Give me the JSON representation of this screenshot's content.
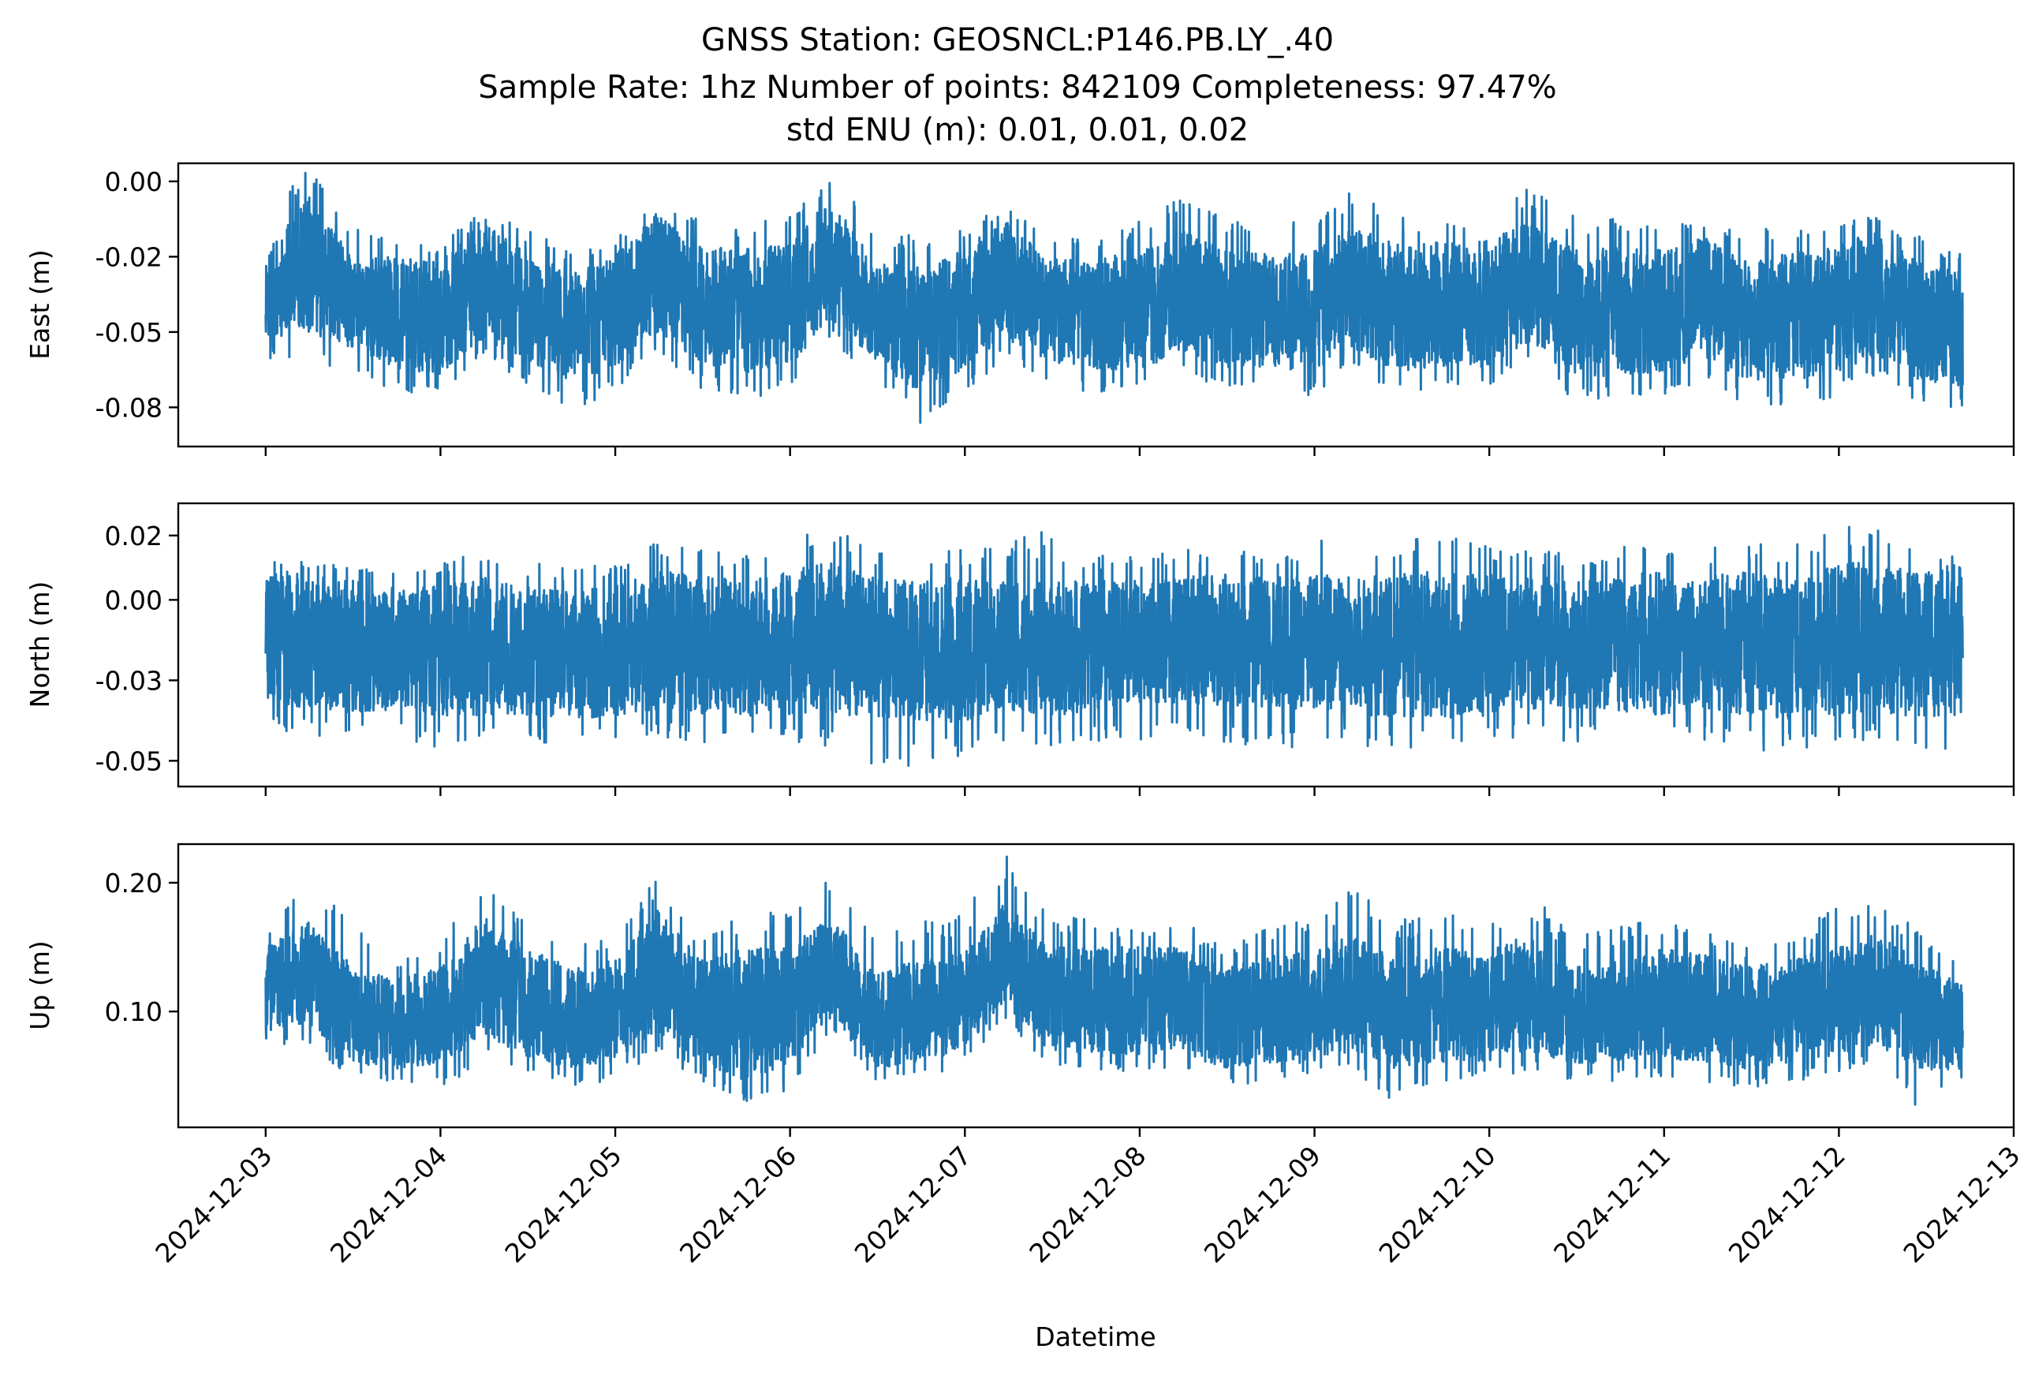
{
  "figure": {
    "title_lines": [
      "GNSS Station: GEOSNCL:P146.PB.LY_.40",
      "Sample Rate: 1hz   Number of points: 842109    Completeness:  97.47%",
      "std ENU (m):  0.01, 0.01, 0.02"
    ],
    "xlabel": "Datetime",
    "line_color": "#1f77b4"
  },
  "chart_data": [
    {
      "type": "line",
      "name": "east-panel",
      "title": "",
      "ylabel": "East (m)",
      "xlabel": "",
      "x_range": [
        "2024-12-02T12:00",
        "2024-12-13T00:00"
      ],
      "x_data_range": [
        "2024-12-03T00:00",
        "2024-12-12T17:00"
      ],
      "ylim": [
        -0.088,
        0.006
      ],
      "yticks": [
        0.0,
        -0.025,
        -0.05,
        -0.075
      ],
      "ytick_labels": [
        "0.00",
        "-0.02",
        "-0.05",
        "-0.08"
      ],
      "grid": false,
      "series": [
        {
          "values_approx_envelope": {
            "time": [
              "2024-12-03T00:00",
              "2024-12-03T06:00",
              "2024-12-03T12:00",
              "2024-12-03T18:00",
              "2024-12-04T00:00",
              "2024-12-04T06:00",
              "2024-12-04T12:00",
              "2024-12-04T18:00",
              "2024-12-05T00:00",
              "2024-12-05T06:00",
              "2024-12-05T12:00",
              "2024-12-05T18:00",
              "2024-12-06T00:00",
              "2024-12-06T06:00",
              "2024-12-06T12:00",
              "2024-12-06T18:00",
              "2024-12-07T00:00",
              "2024-12-07T06:00",
              "2024-12-07T12:00",
              "2024-12-07T18:00",
              "2024-12-08T00:00",
              "2024-12-08T06:00",
              "2024-12-08T12:00",
              "2024-12-08T18:00",
              "2024-12-09T00:00",
              "2024-12-09T06:00",
              "2024-12-09T12:00",
              "2024-12-09T18:00",
              "2024-12-10T00:00",
              "2024-12-10T06:00",
              "2024-12-10T12:00",
              "2024-12-10T18:00",
              "2024-12-11T00:00",
              "2024-12-11T06:00",
              "2024-12-11T12:00",
              "2024-12-11T18:00",
              "2024-12-12T00:00",
              "2024-12-12T06:00",
              "2024-12-12T12:00",
              "2024-12-12T17:00"
            ],
            "upper": [
              -0.024,
              -0.005,
              -0.025,
              -0.025,
              -0.027,
              -0.012,
              -0.024,
              -0.03,
              -0.025,
              -0.01,
              -0.022,
              -0.022,
              -0.021,
              -0.005,
              -0.027,
              -0.028,
              -0.022,
              -0.013,
              -0.026,
              -0.025,
              -0.024,
              -0.016,
              -0.022,
              -0.024,
              -0.024,
              -0.015,
              -0.021,
              -0.02,
              -0.02,
              -0.013,
              -0.022,
              -0.022,
              -0.022,
              -0.018,
              -0.026,
              -0.024,
              -0.021,
              -0.017,
              -0.027,
              -0.03
            ],
            "lower": [
              -0.052,
              -0.05,
              -0.057,
              -0.062,
              -0.064,
              -0.052,
              -0.06,
              -0.066,
              -0.062,
              -0.05,
              -0.06,
              -0.064,
              -0.062,
              -0.046,
              -0.06,
              -0.07,
              -0.064,
              -0.052,
              -0.06,
              -0.062,
              -0.064,
              -0.056,
              -0.062,
              -0.062,
              -0.063,
              -0.056,
              -0.063,
              -0.062,
              -0.062,
              -0.054,
              -0.064,
              -0.065,
              -0.064,
              -0.058,
              -0.066,
              -0.066,
              -0.064,
              -0.058,
              -0.066,
              -0.068
            ],
            "spike_max": [
              -0.012,
              0.005,
              -0.015,
              -0.018,
              -0.02,
              -0.01,
              -0.016,
              -0.022,
              -0.02,
              -0.005,
              -0.013,
              -0.016,
              -0.01,
              0.004,
              -0.016,
              -0.018,
              -0.016,
              -0.007,
              -0.02,
              -0.018,
              -0.014,
              -0.005,
              -0.012,
              -0.014,
              -0.013,
              -0.002,
              -0.012,
              -0.011,
              -0.013,
              -0.002,
              -0.011,
              -0.012,
              -0.013,
              -0.012,
              -0.016,
              -0.015,
              -0.014,
              -0.011,
              -0.018,
              -0.023
            ],
            "spike_min": [
              -0.06,
              -0.057,
              -0.066,
              -0.069,
              -0.072,
              -0.057,
              -0.068,
              -0.077,
              -0.07,
              -0.056,
              -0.069,
              -0.072,
              -0.07,
              -0.052,
              -0.068,
              -0.081,
              -0.072,
              -0.058,
              -0.068,
              -0.07,
              -0.072,
              -0.063,
              -0.07,
              -0.07,
              -0.071,
              -0.062,
              -0.071,
              -0.07,
              -0.07,
              -0.061,
              -0.072,
              -0.073,
              -0.072,
              -0.066,
              -0.074,
              -0.074,
              -0.072,
              -0.065,
              -0.074,
              -0.076
            ]
          }
        }
      ]
    },
    {
      "type": "line",
      "name": "north-panel",
      "title": "",
      "ylabel": "North (m)",
      "xlabel": "",
      "x_range": [
        "2024-12-02T12:00",
        "2024-12-13T00:00"
      ],
      "x_data_range": [
        "2024-12-03T00:00",
        "2024-12-12T17:00"
      ],
      "ylim": [
        -0.058,
        0.03
      ],
      "yticks": [
        0.02,
        0.0,
        -0.025,
        -0.05
      ],
      "ytick_labels": [
        "0.02",
        "0.00",
        "-0.03",
        "-0.05"
      ],
      "grid": false,
      "series": [
        {
          "values_approx_envelope": {
            "time": [
              "2024-12-03T00:00",
              "2024-12-03T06:00",
              "2024-12-03T12:00",
              "2024-12-03T18:00",
              "2024-12-04T00:00",
              "2024-12-04T06:00",
              "2024-12-04T12:00",
              "2024-12-04T18:00",
              "2024-12-05T00:00",
              "2024-12-05T06:00",
              "2024-12-05T12:00",
              "2024-12-05T18:00",
              "2024-12-06T00:00",
              "2024-12-06T06:00",
              "2024-12-06T12:00",
              "2024-12-06T18:00",
              "2024-12-07T00:00",
              "2024-12-07T06:00",
              "2024-12-07T12:00",
              "2024-12-07T18:00",
              "2024-12-08T00:00",
              "2024-12-08T06:00",
              "2024-12-08T12:00",
              "2024-12-08T18:00",
              "2024-12-09T00:00",
              "2024-12-09T06:00",
              "2024-12-09T12:00",
              "2024-12-09T18:00",
              "2024-12-10T00:00",
              "2024-12-10T06:00",
              "2024-12-10T12:00",
              "2024-12-10T18:00",
              "2024-12-11T00:00",
              "2024-12-11T06:00",
              "2024-12-11T12:00",
              "2024-12-11T18:00",
              "2024-12-12T00:00",
              "2024-12-12T06:00",
              "2024-12-12T12:00",
              "2024-12-12T17:00"
            ],
            "upper": [
              0.01,
              0.008,
              0.006,
              0.004,
              0.005,
              0.007,
              0.004,
              0.003,
              0.004,
              0.009,
              0.008,
              0.006,
              0.009,
              0.012,
              0.007,
              0.006,
              0.007,
              0.006,
              0.006,
              0.006,
              0.006,
              0.007,
              0.008,
              0.007,
              0.008,
              0.007,
              0.008,
              0.009,
              0.008,
              0.008,
              0.007,
              0.007,
              0.009,
              0.007,
              0.009,
              0.006,
              0.011,
              0.012,
              0.008,
              0.012
            ],
            "lower": [
              -0.032,
              -0.034,
              -0.035,
              -0.034,
              -0.036,
              -0.036,
              -0.036,
              -0.037,
              -0.036,
              -0.034,
              -0.036,
              -0.036,
              -0.036,
              -0.036,
              -0.036,
              -0.038,
              -0.038,
              -0.034,
              -0.036,
              -0.036,
              -0.032,
              -0.032,
              -0.034,
              -0.034,
              -0.034,
              -0.036,
              -0.036,
              -0.037,
              -0.036,
              -0.034,
              -0.034,
              -0.035,
              -0.036,
              -0.034,
              -0.036,
              -0.037,
              -0.036,
              -0.034,
              -0.038,
              -0.036
            ],
            "spike_max": [
              0.013,
              0.012,
              0.011,
              0.01,
              0.011,
              0.016,
              0.012,
              0.01,
              0.011,
              0.018,
              0.016,
              0.014,
              0.018,
              0.024,
              0.016,
              0.014,
              0.016,
              0.018,
              0.022,
              0.014,
              0.014,
              0.016,
              0.016,
              0.016,
              0.018,
              0.021,
              0.016,
              0.024,
              0.018,
              0.016,
              0.014,
              0.016,
              0.018,
              0.016,
              0.018,
              0.016,
              0.024,
              0.023,
              0.016,
              0.014
            ],
            "spike_min": [
              -0.04,
              -0.042,
              -0.043,
              -0.044,
              -0.046,
              -0.042,
              -0.044,
              -0.046,
              -0.044,
              -0.042,
              -0.046,
              -0.044,
              -0.044,
              -0.046,
              -0.052,
              -0.054,
              -0.048,
              -0.044,
              -0.046,
              -0.044,
              -0.044,
              -0.042,
              -0.044,
              -0.046,
              -0.046,
              -0.046,
              -0.047,
              -0.044,
              -0.044,
              -0.043,
              -0.044,
              -0.045,
              -0.044,
              -0.045,
              -0.046,
              -0.048,
              -0.046,
              -0.044,
              -0.049,
              -0.046
            ]
          }
        }
      ]
    },
    {
      "type": "line",
      "name": "up-panel",
      "title": "",
      "ylabel": "Up (m)",
      "xlabel": "Datetime",
      "x_range": [
        "2024-12-02T12:00",
        "2024-12-13T00:00"
      ],
      "x_data_range": [
        "2024-12-03T00:00",
        "2024-12-12T17:00"
      ],
      "ylim": [
        0.01,
        0.23
      ],
      "yticks": [
        0.2,
        0.1
      ],
      "ytick_labels": [
        "0.20",
        "0.10"
      ],
      "grid": false,
      "xtick_labels": [
        "2024-12-03",
        "2024-12-04",
        "2024-12-05",
        "2024-12-06",
        "2024-12-07",
        "2024-12-08",
        "2024-12-09",
        "2024-12-10",
        "2024-12-11",
        "2024-12-12",
        "2024-12-13"
      ],
      "series": [
        {
          "values_approx_envelope": {
            "time": [
              "2024-12-03T00:00",
              "2024-12-03T06:00",
              "2024-12-03T12:00",
              "2024-12-03T18:00",
              "2024-12-04T00:00",
              "2024-12-04T06:00",
              "2024-12-04T12:00",
              "2024-12-04T18:00",
              "2024-12-05T00:00",
              "2024-12-05T06:00",
              "2024-12-05T12:00",
              "2024-12-05T18:00",
              "2024-12-06T00:00",
              "2024-12-06T06:00",
              "2024-12-06T12:00",
              "2024-12-06T18:00",
              "2024-12-07T00:00",
              "2024-12-07T06:00",
              "2024-12-07T12:00",
              "2024-12-07T18:00",
              "2024-12-08T00:00",
              "2024-12-08T06:00",
              "2024-12-08T12:00",
              "2024-12-08T18:00",
              "2024-12-09T00:00",
              "2024-12-09T06:00",
              "2024-12-09T12:00",
              "2024-12-09T18:00",
              "2024-12-10T00:00",
              "2024-12-10T06:00",
              "2024-12-10T12:00",
              "2024-12-10T18:00",
              "2024-12-11T00:00",
              "2024-12-11T06:00",
              "2024-12-11T12:00",
              "2024-12-11T18:00",
              "2024-12-12T00:00",
              "2024-12-12T06:00",
              "2024-12-12T12:00",
              "2024-12-12T17:00"
            ],
            "upper": [
              0.15,
              0.17,
              0.135,
              0.125,
              0.135,
              0.175,
              0.15,
              0.135,
              0.14,
              0.18,
              0.14,
              0.15,
              0.15,
              0.175,
              0.13,
              0.14,
              0.145,
              0.185,
              0.15,
              0.15,
              0.15,
              0.15,
              0.135,
              0.145,
              0.145,
              0.16,
              0.14,
              0.15,
              0.145,
              0.16,
              0.135,
              0.14,
              0.15,
              0.145,
              0.135,
              0.14,
              0.15,
              0.16,
              0.14,
              0.12
            ],
            "lower": [
              0.085,
              0.09,
              0.06,
              0.055,
              0.06,
              0.08,
              0.065,
              0.055,
              0.06,
              0.085,
              0.06,
              0.045,
              0.06,
              0.095,
              0.055,
              0.06,
              0.07,
              0.105,
              0.07,
              0.065,
              0.065,
              0.07,
              0.055,
              0.06,
              0.06,
              0.07,
              0.055,
              0.06,
              0.06,
              0.07,
              0.06,
              0.06,
              0.065,
              0.06,
              0.055,
              0.06,
              0.065,
              0.075,
              0.055,
              0.055
            ],
            "spike_max": [
              0.165,
              0.205,
              0.17,
              0.14,
              0.155,
              0.205,
              0.17,
              0.15,
              0.16,
              0.205,
              0.16,
              0.18,
              0.175,
              0.21,
              0.16,
              0.17,
              0.175,
              0.222,
              0.175,
              0.175,
              0.165,
              0.175,
              0.15,
              0.165,
              0.175,
              0.195,
              0.17,
              0.185,
              0.175,
              0.195,
              0.16,
              0.165,
              0.175,
              0.165,
              0.15,
              0.16,
              0.18,
              0.185,
              0.165,
              0.135
            ],
            "spike_min": [
              0.078,
              0.07,
              0.05,
              0.045,
              0.035,
              0.065,
              0.05,
              0.04,
              0.045,
              0.07,
              0.045,
              0.03,
              0.035,
              0.085,
              0.045,
              0.045,
              0.055,
              0.095,
              0.055,
              0.055,
              0.05,
              0.055,
              0.04,
              0.045,
              0.045,
              0.055,
              0.02,
              0.045,
              0.045,
              0.055,
              0.045,
              0.045,
              0.05,
              0.045,
              0.04,
              0.045,
              0.05,
              0.06,
              0.02,
              0.045
            ]
          }
        }
      ]
    }
  ]
}
